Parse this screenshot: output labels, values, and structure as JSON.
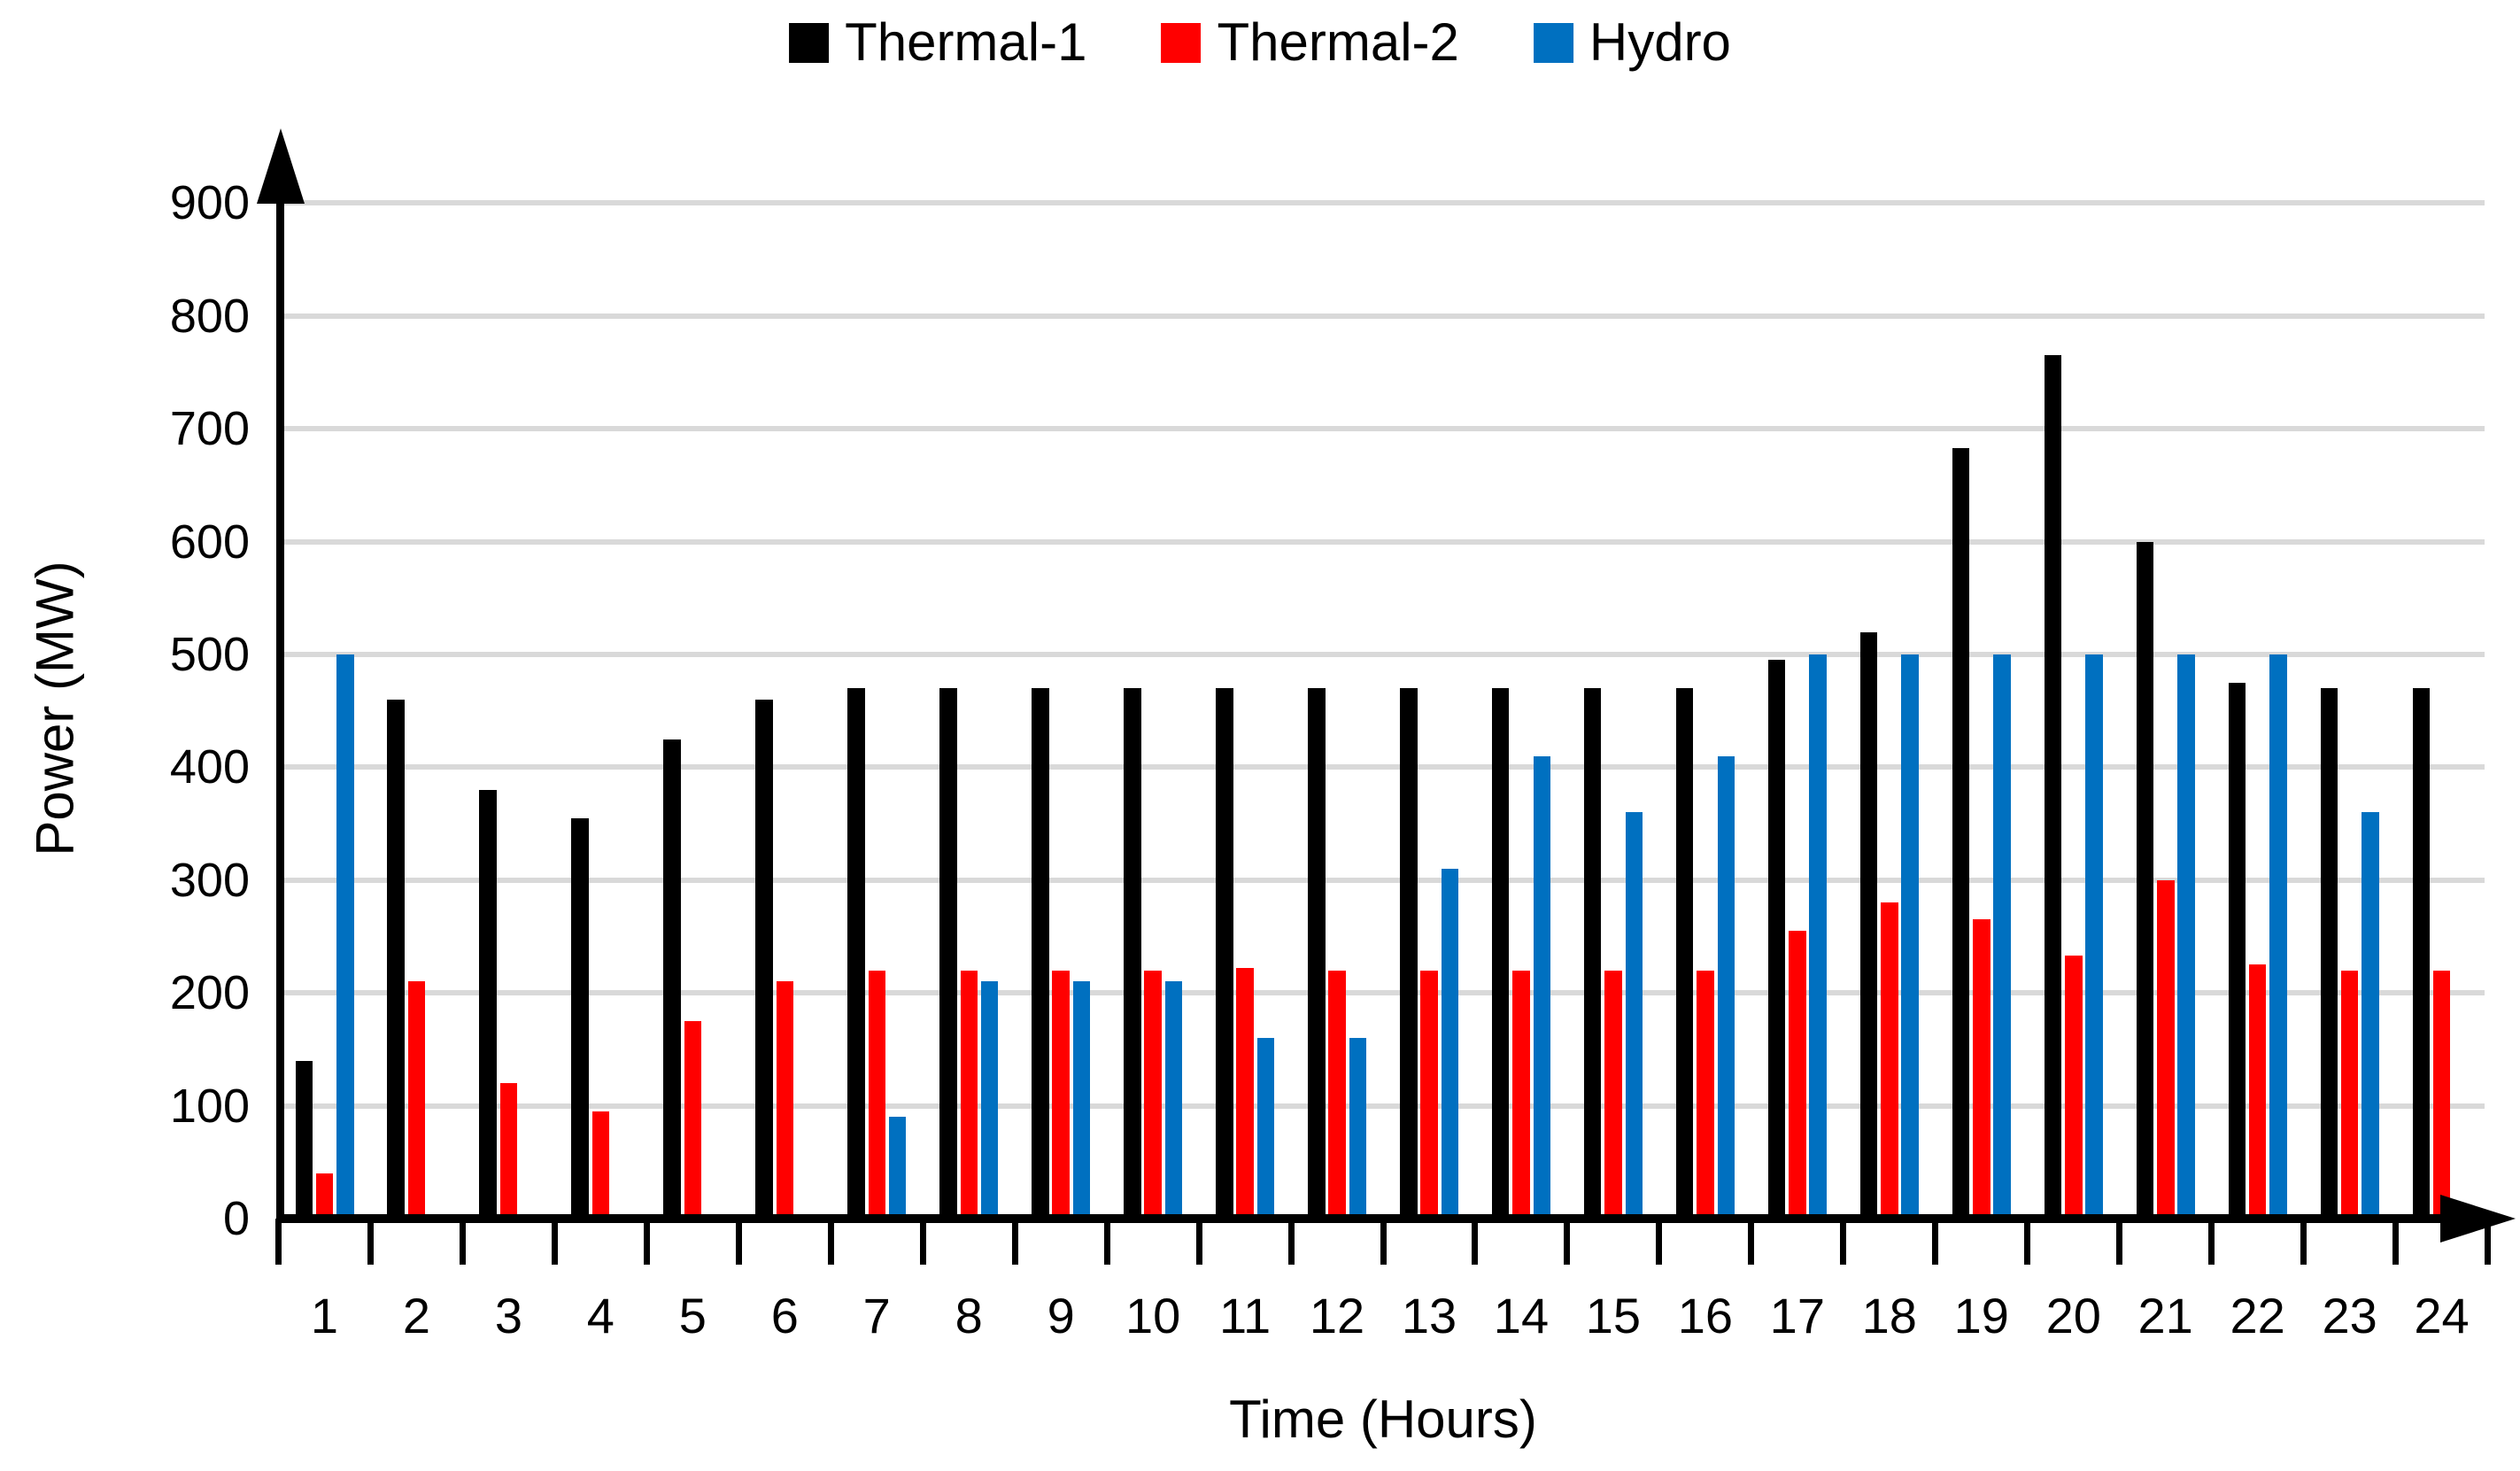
{
  "legend": {
    "items": [
      {
        "label": "Thermal-1",
        "color": "#000000"
      },
      {
        "label": "Thermal-2",
        "color": "#FF0000"
      },
      {
        "label": "Hydro",
        "color": "#0070C0"
      }
    ]
  },
  "chart_data": {
    "type": "bar",
    "title": "",
    "xlabel": "Time (Hours)",
    "ylabel": "Power (MW)",
    "ylim": [
      0,
      900
    ],
    "ytick_step": 100,
    "grid": "horizontal",
    "legend_position": "top-center",
    "categories": [
      1,
      2,
      3,
      4,
      5,
      6,
      7,
      8,
      9,
      10,
      11,
      12,
      13,
      14,
      15,
      16,
      17,
      18,
      19,
      20,
      21,
      22,
      23,
      24
    ],
    "series": [
      {
        "name": "Thermal-1",
        "color": "#000000",
        "values": [
          140,
          460,
          380,
          355,
          425,
          460,
          470,
          470,
          470,
          470,
          470,
          470,
          470,
          470,
          470,
          470,
          495,
          520,
          683,
          765,
          600,
          475,
          470,
          470
        ]
      },
      {
        "name": "Thermal-2",
        "color": "#FF0000",
        "values": [
          40,
          210,
          120,
          95,
          175,
          210,
          220,
          220,
          220,
          220,
          222,
          220,
          220,
          220,
          220,
          220,
          255,
          280,
          265,
          233,
          300,
          225,
          220,
          220
        ]
      },
      {
        "name": "Hydro",
        "color": "#0070C0",
        "values": [
          500,
          0,
          0,
          0,
          0,
          0,
          90,
          210,
          210,
          210,
          160,
          160,
          310,
          410,
          360,
          410,
          500,
          500,
          500,
          500,
          500,
          500,
          360,
          0
        ]
      }
    ]
  }
}
